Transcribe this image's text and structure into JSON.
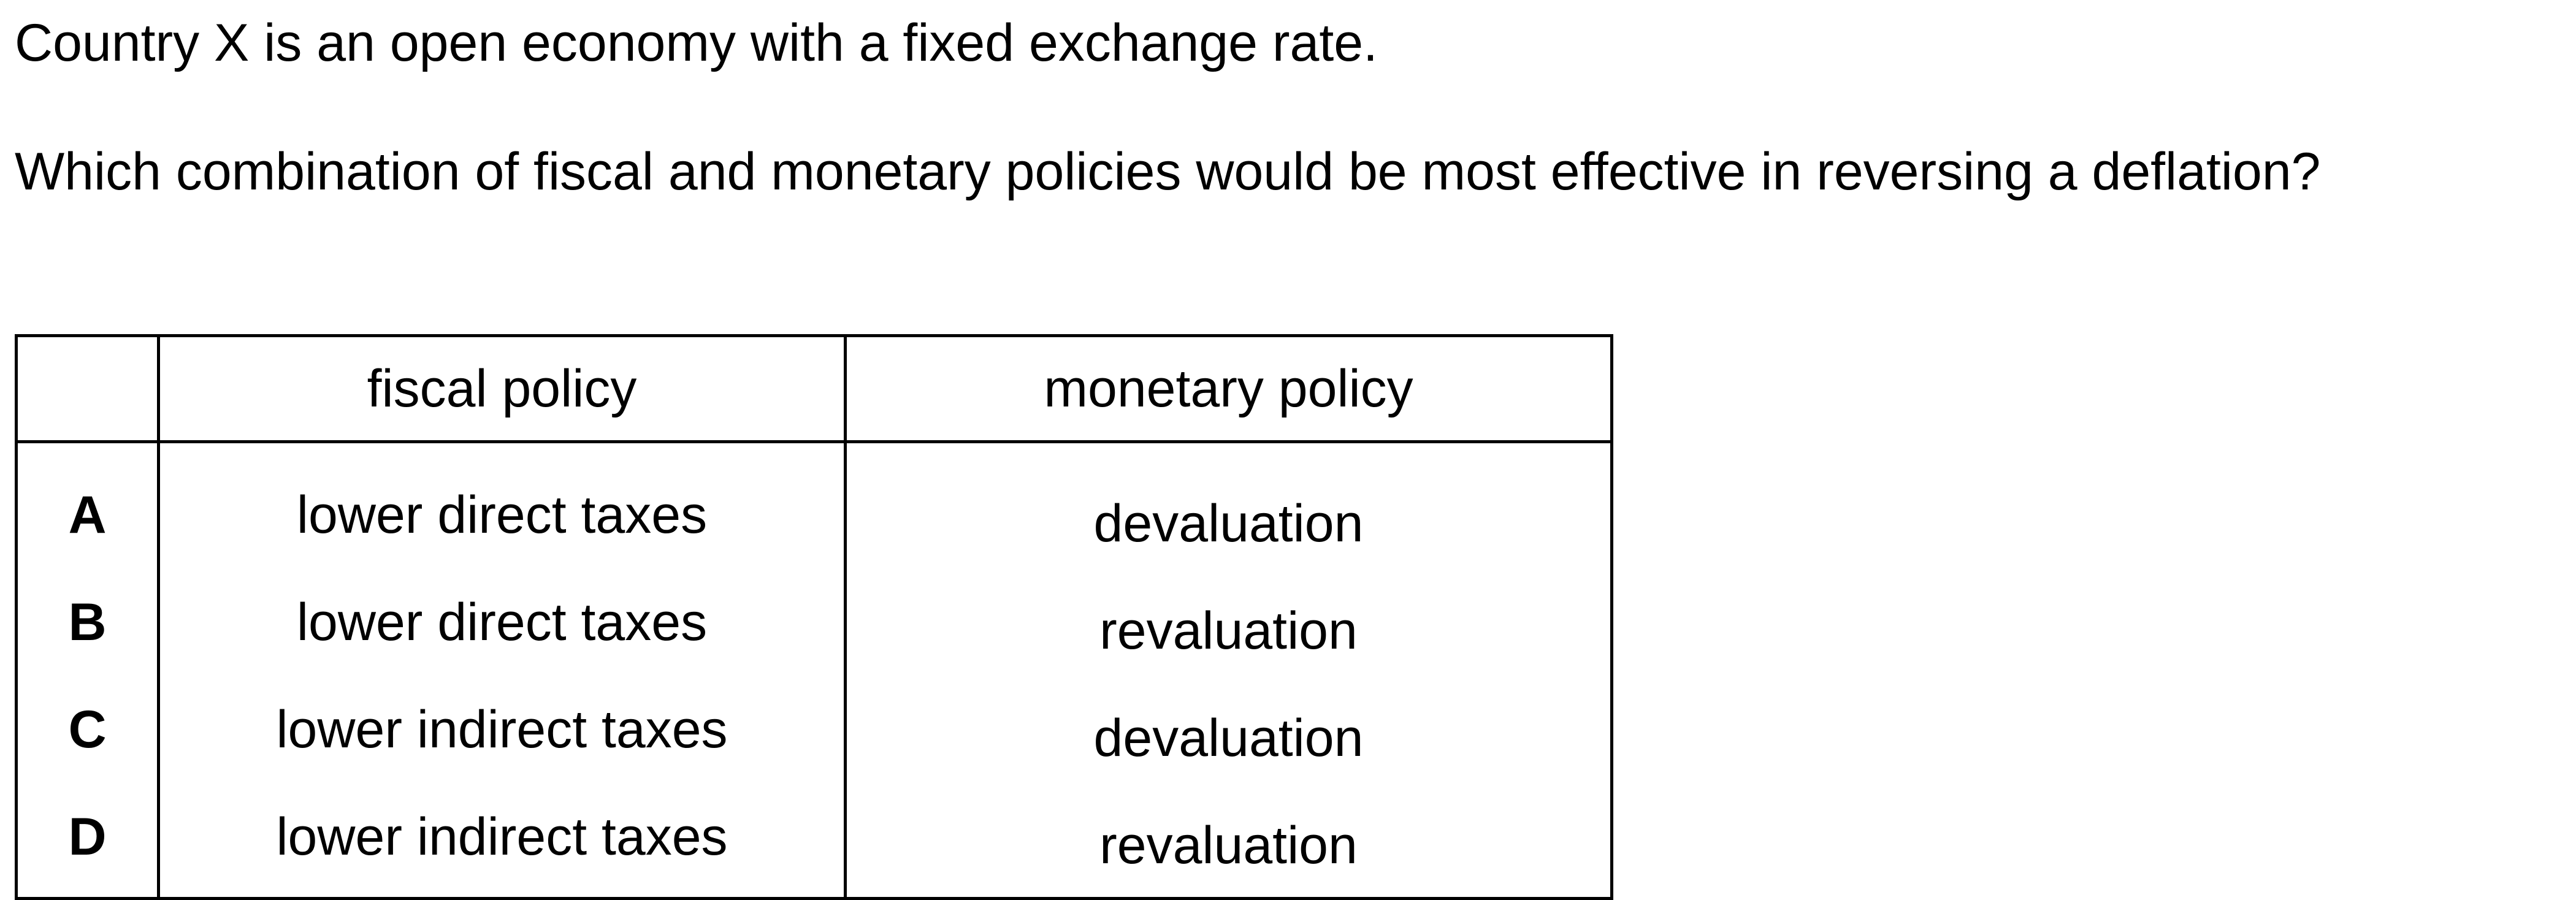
{
  "question": {
    "intro": "Country X is an open economy with a fixed exchange rate.",
    "prompt": "Which combination of fiscal and monetary policies would be most effective in reversing a deflation?"
  },
  "table": {
    "headers": [
      "",
      "fiscal policy",
      "monetary policy"
    ],
    "rows": [
      {
        "option": "A",
        "fiscal": "lower direct taxes",
        "monetary": "devaluation"
      },
      {
        "option": "B",
        "fiscal": "lower direct taxes",
        "monetary": "revaluation"
      },
      {
        "option": "C",
        "fiscal": "lower indirect taxes",
        "monetary": "devaluation"
      },
      {
        "option": "D",
        "fiscal": "lower indirect taxes",
        "monetary": "revaluation"
      }
    ]
  }
}
